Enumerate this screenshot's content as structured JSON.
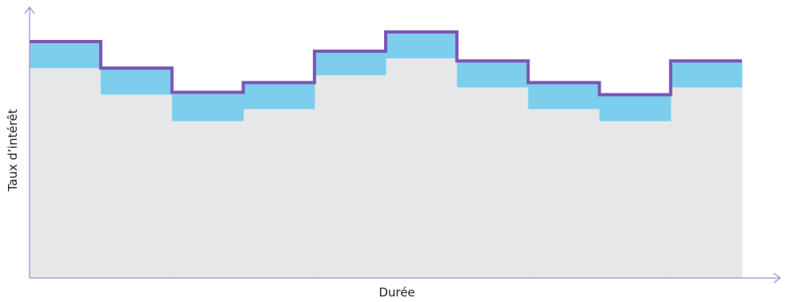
{
  "chart_data": {
    "type": "area",
    "title": "",
    "xlabel": "Durée",
    "ylabel": "Taux d’intérêt",
    "xlim": [
      0,
      10
    ],
    "ylim": [
      0,
      100
    ],
    "grid": false,
    "legend": "none",
    "ticks": "none",
    "periods": [
      1,
      2,
      3,
      4,
      5,
      6,
      7,
      8,
      9,
      10
    ],
    "series": [
      {
        "values": [
          87,
          76,
          65,
          70,
          84,
          91,
          79,
          70,
          65,
          79
        ]
      },
      {
        "values": [
          98,
          87,
          77,
          81,
          94,
          102,
          90,
          81,
          76,
          90
        ]
      }
    ],
    "colors": {
      "base_fill": "#e6e7e8",
      "band_fill": "#7dcdec",
      "line": "#7b55b3",
      "axis": "#9b8fd1",
      "text": "#222222"
    }
  }
}
